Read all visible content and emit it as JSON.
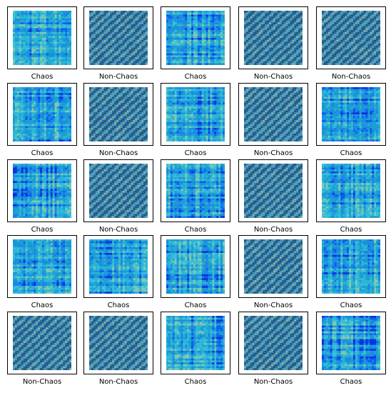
{
  "colors": {
    "frame_border": "#000000",
    "palette_chaos": [
      "#1b9fd0",
      "#2bb6d6",
      "#4cc3d2",
      "#86c9a8",
      "#0a5cf0",
      "#0a2fdd",
      "#3ac0e0",
      "#1e86e8"
    ],
    "palette_nonchaos": [
      "#2a6fa6",
      "#3a8cb8",
      "#5ea9b0",
      "#8bb59a",
      "#22517e",
      "#4a9bc0"
    ]
  },
  "panels": [
    {
      "label": "Chaos",
      "kind": "chaos",
      "icon": "recurrence-plot-icon"
    },
    {
      "label": "Non-Chaos",
      "kind": "nonchaos",
      "icon": "recurrence-plot-icon"
    },
    {
      "label": "Chaos",
      "kind": "chaos",
      "icon": "recurrence-plot-icon"
    },
    {
      "label": "Non-Chaos",
      "kind": "nonchaos",
      "icon": "recurrence-plot-icon"
    },
    {
      "label": "Non-Chaos",
      "kind": "nonchaos",
      "icon": "recurrence-plot-icon"
    },
    {
      "label": "Chaos",
      "kind": "chaos",
      "icon": "recurrence-plot-icon"
    },
    {
      "label": "Non-Chaos",
      "kind": "nonchaos",
      "icon": "recurrence-plot-icon"
    },
    {
      "label": "Chaos",
      "kind": "chaos",
      "icon": "recurrence-plot-icon"
    },
    {
      "label": "Non-Chaos",
      "kind": "nonchaos",
      "icon": "recurrence-plot-icon"
    },
    {
      "label": "Chaos",
      "kind": "chaos",
      "icon": "recurrence-plot-icon"
    },
    {
      "label": "Chaos",
      "kind": "chaos",
      "icon": "recurrence-plot-icon"
    },
    {
      "label": "Non-Chaos",
      "kind": "nonchaos",
      "icon": "recurrence-plot-icon"
    },
    {
      "label": "Chaos",
      "kind": "chaos",
      "icon": "recurrence-plot-icon"
    },
    {
      "label": "Non-Chaos",
      "kind": "nonchaos",
      "icon": "recurrence-plot-icon"
    },
    {
      "label": "Chaos",
      "kind": "chaos",
      "icon": "recurrence-plot-icon"
    },
    {
      "label": "Chaos",
      "kind": "chaos",
      "icon": "recurrence-plot-icon"
    },
    {
      "label": "Chaos",
      "kind": "chaos",
      "icon": "recurrence-plot-icon"
    },
    {
      "label": "Chaos",
      "kind": "chaos",
      "icon": "recurrence-plot-icon"
    },
    {
      "label": "Non-Chaos",
      "kind": "nonchaos",
      "icon": "recurrence-plot-icon"
    },
    {
      "label": "Chaos",
      "kind": "chaos",
      "icon": "recurrence-plot-icon"
    },
    {
      "label": "Non-Chaos",
      "kind": "nonchaos",
      "icon": "recurrence-plot-icon"
    },
    {
      "label": "Non-Chaos",
      "kind": "nonchaos",
      "icon": "recurrence-plot-icon"
    },
    {
      "label": "Chaos",
      "kind": "chaos",
      "icon": "recurrence-plot-icon"
    },
    {
      "label": "Non-Chaos",
      "kind": "nonchaos",
      "icon": "recurrence-plot-icon"
    },
    {
      "label": "Chaos",
      "kind": "chaos",
      "icon": "recurrence-plot-icon"
    }
  ]
}
